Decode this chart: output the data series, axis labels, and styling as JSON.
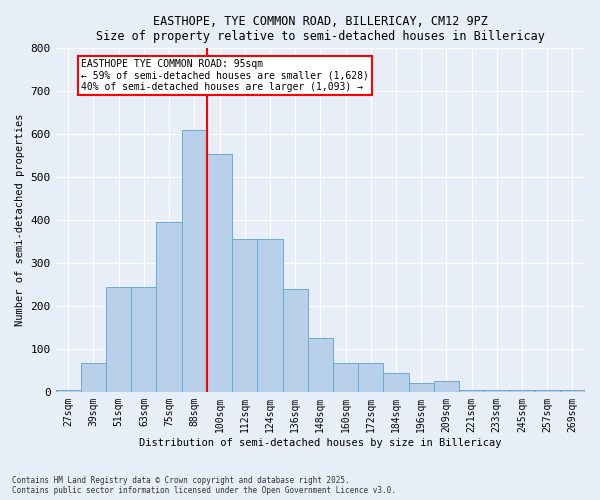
{
  "title1": "EASTHOPE, TYE COMMON ROAD, BILLERICAY, CM12 9PZ",
  "title2": "Size of property relative to semi-detached houses in Billericay",
  "xlabel": "Distribution of semi-detached houses by size in Billericay",
  "ylabel": "Number of semi-detached properties",
  "categories": [
    "27sqm",
    "39sqm",
    "51sqm",
    "63sqm",
    "75sqm",
    "88sqm",
    "100sqm",
    "112sqm",
    "124sqm",
    "136sqm",
    "148sqm",
    "160sqm",
    "172sqm",
    "184sqm",
    "196sqm",
    "209sqm",
    "221sqm",
    "233sqm",
    "245sqm",
    "257sqm",
    "269sqm"
  ],
  "values": [
    5,
    68,
    245,
    245,
    395,
    610,
    555,
    355,
    355,
    240,
    125,
    68,
    68,
    45,
    20,
    25,
    5,
    5,
    5,
    5,
    5
  ],
  "bar_color": "#b8d0ea",
  "bar_edge_color": "#6aaad4",
  "vline_index": 6,
  "vline_color": "red",
  "annotation_title": "EASTHOPE TYE COMMON ROAD: 95sqm",
  "annotation_line1": "← 59% of semi-detached houses are smaller (1,628)",
  "annotation_line2": "40% of semi-detached houses are larger (1,093) →",
  "ylim": [
    0,
    800
  ],
  "yticks": [
    0,
    100,
    200,
    300,
    400,
    500,
    600,
    700,
    800
  ],
  "footnote1": "Contains HM Land Registry data © Crown copyright and database right 2025.",
  "footnote2": "Contains public sector information licensed under the Open Government Licence v3.0.",
  "bg_color": "#e8eef7",
  "plot_bg_color": "#e8eef7"
}
